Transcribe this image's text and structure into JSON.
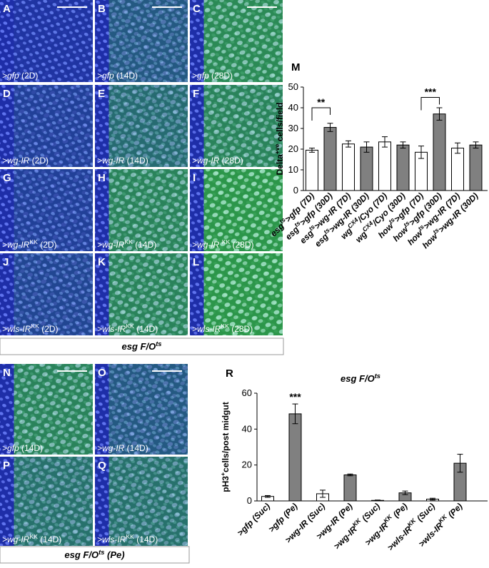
{
  "panels": [
    {
      "letter": "A",
      "label": {
        "pre": ">gfp",
        "post": " (2D)"
      }
    },
    {
      "letter": "B",
      "label": {
        "pre": ">gfp",
        "post": " (14D)"
      }
    },
    {
      "letter": "C",
      "label": {
        "pre": ">gfp",
        "post": " (28D)"
      }
    },
    {
      "letter": "D",
      "label": {
        "pre": ">wg-IR",
        "post": " (2D)"
      }
    },
    {
      "letter": "E",
      "label": {
        "pre": ">wg-IR",
        "post": " (14D)"
      }
    },
    {
      "letter": "F",
      "label": {
        "pre": ">wg-IR",
        "post": " (28D)"
      }
    },
    {
      "letter": "G",
      "label": {
        "pre": ">wg-IR",
        "sup": "KK",
        "post": " (2D)"
      }
    },
    {
      "letter": "H",
      "label": {
        "pre": ">wg-IR",
        "sup": "KK",
        "post": " (14D)"
      }
    },
    {
      "letter": "I",
      "label": {
        "pre": ">wg-IR ",
        "sup": "KK",
        "post": " (28D)"
      }
    },
    {
      "letter": "J",
      "label": {
        "pre": ">wls-IR",
        "sup": "KK",
        "post": " (2D)"
      }
    },
    {
      "letter": "K",
      "label": {
        "pre": ">wls-IR",
        "sup": "KK",
        "post": " (14D)"
      }
    },
    {
      "letter": "L",
      "label": {
        "pre": ">wls-IR",
        "sup": "KK",
        "post": " (28D)"
      }
    },
    {
      "letter": "N",
      "label": {
        "pre": ">gfp",
        "post": " (14D)"
      }
    },
    {
      "letter": "O",
      "label": {
        "pre": ">wg-IR",
        "post": " (14D)"
      }
    },
    {
      "letter": "P",
      "label": {
        "pre": ">wg-IR",
        "sup": "KK",
        "post": " (14D)"
      }
    },
    {
      "letter": "Q",
      "label": {
        "pre": ">wls-IR",
        "sup": "KK",
        "post": " (14D)"
      }
    }
  ],
  "captions": [
    {
      "pre": "esg F/O",
      "sup": "ts"
    },
    {
      "pre": "esg F/O",
      "sup": "ts",
      "post": " (Pe)"
    }
  ],
  "chart_data": [
    {
      "type": "bar",
      "letter": "M",
      "ylabel": {
        "pre": "Delta",
        "sup": "+ve",
        "post": " cells/field"
      },
      "categories": [
        {
          "pre": "esg",
          "sup": "ts",
          "post": ">gfp (7D)"
        },
        {
          "pre": "esg",
          "sup": "ts",
          "post": ">gfp (30D)"
        },
        {
          "pre": "esg",
          "sup": "ts",
          "post": ">wg-IR (7D)"
        },
        {
          "pre": "esg",
          "sup": "ts",
          "post": ">wg-IR (30D)"
        },
        {
          "pre": "wg",
          "sup": "CX4",
          "post": "/Cyo (7D)"
        },
        {
          "pre": "wg",
          "sup": "CX4",
          "post": "/Cyo (30D)"
        },
        {
          "pre": "how",
          "sup": "ts",
          "post": ">gfp (7D)"
        },
        {
          "pre": "how",
          "sup": "ts",
          "post": ">gfp (30D)"
        },
        {
          "pre": "how",
          "sup": "ts",
          "post": ">wg-IR (7D)"
        },
        {
          "pre": "how",
          "sup": "ts",
          "post": ">wg-IR (30D)"
        }
      ],
      "values": [
        19.5,
        30.5,
        22.5,
        21,
        23.5,
        22,
        18.5,
        37,
        20.5,
        22
      ],
      "errors": [
        1,
        2,
        1.5,
        2.5,
        2.5,
        1.5,
        3,
        3,
        2.5,
        1.5
      ],
      "colors": [
        "#ffffff",
        "#808080",
        "#ffffff",
        "#808080",
        "#ffffff",
        "#808080",
        "#ffffff",
        "#808080",
        "#ffffff",
        "#808080"
      ],
      "annotations": [
        "**",
        "***"
      ],
      "ylim": [
        0,
        50
      ],
      "yticks": [
        0,
        10,
        20,
        30,
        40,
        50
      ]
    },
    {
      "type": "bar",
      "letter": "R",
      "title": {
        "pre": "esg F/O",
        "sup": "ts"
      },
      "ylabel": {
        "pre": "pH3",
        "sup": "+",
        "post": "cells/post midgut"
      },
      "categories": [
        {
          "pre": ">gfp",
          "post": " (Suc)"
        },
        {
          "pre": ">gfp",
          "post": " (Pe)"
        },
        {
          "pre": ">wg-IR",
          "post": " (Suc)"
        },
        {
          "pre": ">wg-IR",
          "post": " (Pe)"
        },
        {
          "pre": ">wg-IR",
          "sup": "KK",
          "post": " (Suc)"
        },
        {
          "pre": ">wg-IR",
          "sup": "KK",
          "post": " (Pe)"
        },
        {
          "pre": ">wls-IR",
          "sup": "KK",
          "post": " (Suc)"
        },
        {
          "pre": ">wls-IR",
          "sup": "KK",
          "post": " (Pe)"
        }
      ],
      "values": [
        2.5,
        48.5,
        4,
        14.5,
        0.3,
        4.5,
        1,
        21
      ],
      "errors": [
        0.5,
        5.5,
        2,
        0.5,
        0.2,
        1,
        0.5,
        5
      ],
      "colors": [
        "#ffffff",
        "#808080",
        "#ffffff",
        "#808080",
        "#ffffff",
        "#808080",
        "#ffffff",
        "#808080"
      ],
      "annotations": [
        "***"
      ],
      "ylim": [
        0,
        60
      ],
      "yticks": [
        0,
        20,
        40,
        60
      ]
    }
  ]
}
